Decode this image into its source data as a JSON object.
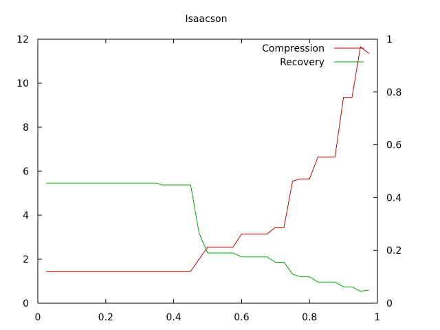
{
  "chart_data": {
    "type": "line",
    "title": "Isaacson",
    "xlabel": "",
    "ylabel": "",
    "y2label": "",
    "xlim": [
      0,
      1
    ],
    "ylim": [
      0,
      12
    ],
    "y2lim": [
      0,
      1
    ],
    "grid": false,
    "legend_position": "top-right",
    "x_ticks": [
      "0",
      "0.2",
      "0.4",
      "0.6",
      "0.8",
      "1"
    ],
    "y_ticks": [
      "0",
      "2",
      "4",
      "6",
      "8",
      "10",
      "12"
    ],
    "y2_ticks": [
      "0",
      "0.2",
      "0.4",
      "0.6",
      "0.8",
      "1"
    ],
    "series": [
      {
        "name": "Compression",
        "axis": "left",
        "color": "#cc0000",
        "x": [
          0.025,
          0.45,
          0.5,
          0.575,
          0.6,
          0.675,
          0.7,
          0.725,
          0.75,
          0.775,
          0.8,
          0.825,
          0.875,
          0.9,
          0.925,
          0.95,
          0.975
        ],
        "y": [
          1.45,
          1.45,
          2.55,
          2.55,
          3.15,
          3.15,
          3.45,
          3.45,
          5.55,
          5.65,
          5.65,
          6.65,
          6.65,
          9.35,
          9.35,
          11.65,
          11.35
        ]
      },
      {
        "name": "Recovery",
        "axis": "right",
        "color": "#00aa00",
        "x": [
          0.025,
          0.35,
          0.365,
          0.45,
          0.475,
          0.5,
          0.575,
          0.6,
          0.675,
          0.7,
          0.725,
          0.75,
          0.775,
          0.8,
          0.825,
          0.875,
          0.9,
          0.925,
          0.95,
          0.975
        ],
        "y": [
          0.455,
          0.455,
          0.448,
          0.448,
          0.265,
          0.19,
          0.19,
          0.175,
          0.175,
          0.155,
          0.155,
          0.11,
          0.1,
          0.1,
          0.08,
          0.08,
          0.062,
          0.062,
          0.045,
          0.05
        ]
      }
    ]
  }
}
